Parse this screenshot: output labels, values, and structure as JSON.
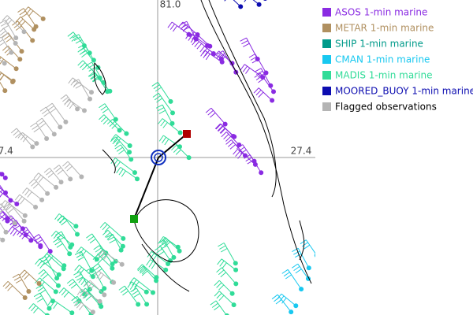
{
  "grid_labels": {
    "top": "81.0",
    "left": "27.4",
    "right": "27.4"
  },
  "legend": {
    "items": [
      {
        "label": "ASOS 1-min marine",
        "color": "#8a2be2"
      },
      {
        "label": "METAR 1-min marine",
        "color": "#b09060"
      },
      {
        "label": "SHIP 1-min marine",
        "color": "#009a8a"
      },
      {
        "label": "CMAN 1-min marine",
        "color": "#18c8f0"
      },
      {
        "label": "MADIS 1-min marine",
        "color": "#30dc98"
      },
      {
        "label": "MOORED_BUOY 1-min marine",
        "color": "#0c0cb0"
      },
      {
        "label": "Flagged observations",
        "color": "#b4b4b4"
      }
    ]
  }
}
